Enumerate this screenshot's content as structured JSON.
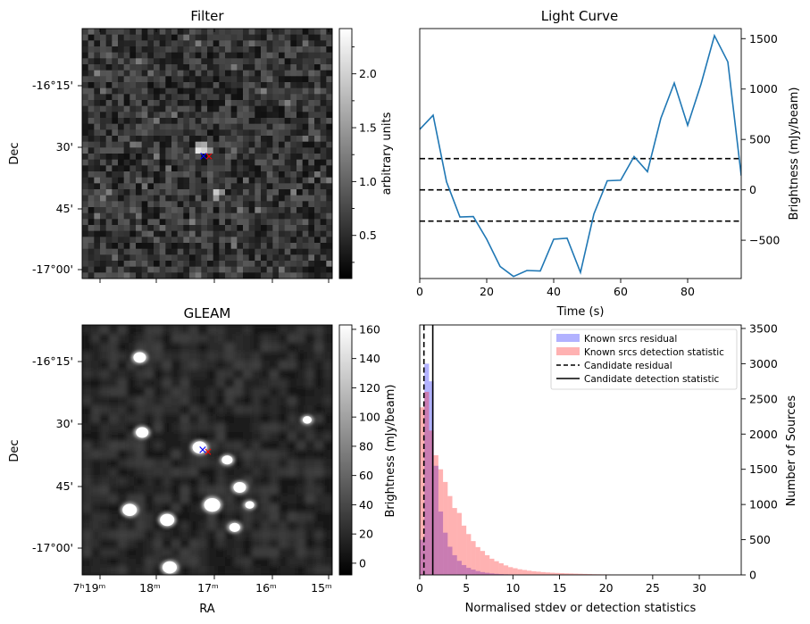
{
  "chart_data": [
    {
      "type": "heatmap",
      "title": "Filter",
      "xlabel": "",
      "ylabel": "Dec",
      "y_ticks": [
        "-16°15'",
        "30'",
        "45'",
        "-17°00'"
      ],
      "colorbar": {
        "label": "arbitrary units",
        "range": [
          0.1,
          2.42
        ],
        "ticks": [
          "0.5",
          "1.0",
          "1.5",
          "2.0"
        ],
        "colormap": "gray"
      },
      "grid_size": 42,
      "markers": [
        {
          "symbol": "×",
          "color": "#0000ff"
        },
        {
          "symbol": "×",
          "color": "#ff0000"
        }
      ]
    },
    {
      "type": "line",
      "title": "Light Curve",
      "xlabel": "Time (s)",
      "ylabel": "Brightness (mJy/beam)",
      "xlim": [
        0,
        96
      ],
      "ylim": [
        -880,
        1600
      ],
      "x_ticks": [
        0,
        20,
        40,
        60,
        80
      ],
      "y_ticks": [
        -500,
        0,
        500,
        1000,
        1500
      ],
      "y_tick_labels": [
        "−500",
        "0",
        "500",
        "1000",
        "1500"
      ],
      "x": [
        0,
        4,
        8,
        12,
        16,
        20,
        24,
        28,
        32,
        36,
        40,
        44,
        48,
        52,
        56,
        60,
        64,
        68,
        72,
        76,
        80,
        84,
        88,
        92,
        96
      ],
      "values": [
        600,
        740,
        80,
        -270,
        -265,
        -490,
        -760,
        -860,
        -800,
        -805,
        -490,
        -480,
        -820,
        -240,
        90,
        95,
        330,
        180,
        710,
        1060,
        640,
        1050,
        1530,
        1270,
        140
      ],
      "line_color": "#1f77b4",
      "reference_lines": [
        {
          "y": 310,
          "style": "dashed",
          "color": "#000000"
        },
        {
          "y": 0,
          "style": "dashed",
          "color": "#000000"
        },
        {
          "y": -310,
          "style": "dashed",
          "color": "#000000"
        }
      ]
    },
    {
      "type": "heatmap",
      "title": "GLEAM",
      "xlabel": "RA",
      "ylabel": "Dec",
      "x_ticks": [
        "7ʰ19ᵐ",
        "18ᵐ",
        "17ᵐ",
        "16ᵐ",
        "15ᵐ"
      ],
      "y_ticks": [
        "-16°15'",
        "30'",
        "45'",
        "-17°00'"
      ],
      "colorbar": {
        "label": "Brightness (mJy/beam)",
        "range": [
          -8,
          163
        ],
        "ticks": [
          "0",
          "20",
          "40",
          "60",
          "80",
          "100",
          "120",
          "140",
          "160"
        ],
        "colormap": "gray"
      },
      "sources": [
        {
          "ra_frac": 0.23,
          "dec_frac": 0.13,
          "radius": 7
        },
        {
          "ra_frac": 0.24,
          "dec_frac": 0.43,
          "radius": 7
        },
        {
          "ra_frac": 0.47,
          "dec_frac": 0.49,
          "radius": 8
        },
        {
          "ra_frac": 0.58,
          "dec_frac": 0.54,
          "radius": 6
        },
        {
          "ra_frac": 0.63,
          "dec_frac": 0.65,
          "radius": 7
        },
        {
          "ra_frac": 0.52,
          "dec_frac": 0.72,
          "radius": 9
        },
        {
          "ra_frac": 0.19,
          "dec_frac": 0.74,
          "radius": 8
        },
        {
          "ra_frac": 0.34,
          "dec_frac": 0.78,
          "radius": 8
        },
        {
          "ra_frac": 0.61,
          "dec_frac": 0.81,
          "radius": 6
        },
        {
          "ra_frac": 0.35,
          "dec_frac": 0.97,
          "radius": 8
        },
        {
          "ra_frac": 0.9,
          "dec_frac": 0.38,
          "radius": 5
        },
        {
          "ra_frac": 0.67,
          "dec_frac": 0.72,
          "radius": 5
        }
      ],
      "markers": [
        {
          "symbol": "×",
          "color": "#0000ff"
        },
        {
          "symbol": "×",
          "color": "#ff0000"
        }
      ]
    },
    {
      "type": "bar",
      "title": "",
      "xlabel": "Normalised stdev or detection statistics",
      "ylabel": "Number of Sources",
      "xlim": [
        0,
        34.5
      ],
      "ylim": [
        0,
        3550
      ],
      "x_ticks": [
        0,
        5,
        10,
        15,
        20,
        25,
        30
      ],
      "y_ticks": [
        0,
        500,
        1000,
        1500,
        2000,
        2500,
        3000,
        3500
      ],
      "bin_width": 0.5,
      "legend_position": "top-right",
      "series": [
        {
          "name": "Known srcs residual",
          "color": "#0000ff",
          "alpha": 0.3,
          "start": 0,
          "values": [
            500,
            3000,
            2750,
            1550,
            900,
            600,
            400,
            280,
            200,
            140,
            100,
            75,
            55,
            40,
            30,
            22,
            16,
            12,
            9,
            7,
            5,
            4,
            3,
            2
          ]
        },
        {
          "name": "Known srcs detection statistic",
          "color": "#ff0000",
          "alpha": 0.3,
          "start": 0,
          "values": [
            2380,
            2600,
            2050,
            1700,
            1500,
            1320,
            1120,
            950,
            880,
            700,
            580,
            480,
            395,
            340,
            280,
            230,
            195,
            165,
            135,
            110,
            95,
            80,
            70,
            60,
            52,
            46,
            40,
            35,
            31,
            28,
            25,
            22,
            20,
            18,
            16,
            14,
            12,
            10,
            9,
            8,
            7,
            6,
            6,
            5,
            5,
            4,
            4,
            3,
            3,
            3,
            3,
            2,
            2,
            2,
            2,
            2,
            1,
            1,
            1,
            1,
            1,
            1,
            1,
            1,
            1,
            1,
            1,
            1,
            1
          ]
        }
      ],
      "reference_lines": [
        {
          "name": "Candidate residual",
          "x": 0.45,
          "style": "dashed",
          "color": "#000000"
        },
        {
          "name": "Candidate detection statistic",
          "x": 1.4,
          "style": "solid",
          "color": "#000000"
        }
      ]
    }
  ]
}
